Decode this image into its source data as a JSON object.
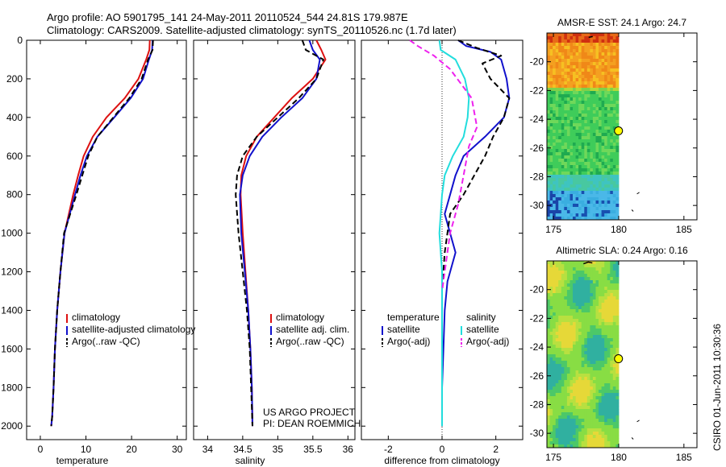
{
  "header": {
    "title_line1": "Argo profile: AO 5901795_141 24-May-2011 20110524_544 24.81S 179.987E",
    "title_line2": "Climatology: CARS2009. Satellite-adjusted climatology: synTS_20110526.nc (1.7d later)"
  },
  "colors": {
    "climatology": "#dd1111",
    "satellite": "#1111cc",
    "argo": "#000000",
    "sat_salinity": "#22dddd",
    "argo_salinity_adj": "#ee22ee"
  },
  "chart_data": [
    {
      "type": "line",
      "id": "temperature",
      "xlabel": "temperature",
      "ylabel": "",
      "xlim": [
        -3,
        32
      ],
      "ylim": [
        0,
        2070
      ],
      "y_reversed": true,
      "xticks": [
        0,
        10,
        20,
        30
      ],
      "yticks": [
        0,
        200,
        400,
        600,
        800,
        1000,
        1200,
        1400,
        1600,
        1800,
        2000
      ],
      "legend": {
        "position": "lower-right",
        "entries": [
          "climatology",
          "satellite-adjusted climatology",
          "Argo(..raw -QC)"
        ]
      },
      "series": [
        {
          "name": "climatology",
          "style": "solid",
          "color_key": "climatology",
          "x": [
            24.0,
            23.9,
            23.2,
            21.5,
            18.5,
            14.5,
            11.5,
            9.5,
            8.3,
            7.2,
            5.3,
            4.4,
            3.7,
            3.2,
            2.9,
            2.6,
            2.4
          ],
          "y": [
            0,
            50,
            100,
            200,
            300,
            400,
            500,
            600,
            700,
            800,
            1000,
            1200,
            1400,
            1600,
            1800,
            1950,
            2000
          ]
        },
        {
          "name": "satellite-adjusted climatology",
          "style": "solid",
          "color_key": "satellite",
          "x": [
            24.6,
            24.5,
            23.8,
            22.5,
            19.8,
            16.2,
            12.5,
            10.2,
            8.8,
            7.6,
            5.3,
            4.4,
            3.7,
            3.2,
            2.9,
            2.6,
            2.4
          ],
          "y": [
            0,
            50,
            100,
            200,
            300,
            400,
            500,
            600,
            700,
            800,
            1000,
            1200,
            1400,
            1600,
            1800,
            1950,
            2000
          ]
        },
        {
          "name": "Argo(..raw -QC)",
          "style": "dashed",
          "color_key": "argo",
          "x": [
            24.7,
            24.6,
            23.6,
            22.2,
            19.5,
            16.0,
            12.5,
            10.5,
            9.2,
            7.9,
            5.2,
            4.4,
            3.7,
            3.2,
            2.9,
            2.6,
            2.4
          ],
          "y": [
            0,
            50,
            100,
            200,
            300,
            400,
            500,
            600,
            700,
            800,
            1000,
            1200,
            1400,
            1600,
            1800,
            1950,
            2000
          ]
        }
      ]
    },
    {
      "type": "line",
      "id": "salinity",
      "xlabel": "salinity",
      "ylabel": "",
      "xlim": [
        33.8,
        36.1
      ],
      "ylim": [
        0,
        2070
      ],
      "y_reversed": true,
      "xticks": [
        34,
        34.5,
        35,
        35.5,
        36
      ],
      "yticks": [
        0,
        200,
        400,
        600,
        800,
        1000,
        1200,
        1400,
        1600,
        1800,
        2000
      ],
      "legend": {
        "position": "lower-right",
        "entries": [
          "climatology",
          "satellite adj. clim.",
          "Argo(..raw -QC)"
        ]
      },
      "annotations": [
        "US ARGO PROJECT",
        "PI: DEAN ROEMMICH"
      ],
      "series": [
        {
          "name": "climatology",
          "style": "solid",
          "color_key": "climatology",
          "x": [
            35.55,
            35.62,
            35.68,
            35.5,
            35.2,
            34.95,
            34.7,
            34.55,
            34.48,
            34.47,
            34.5,
            34.54,
            34.58,
            34.61,
            34.63,
            34.64
          ],
          "y": [
            0,
            50,
            100,
            200,
            300,
            400,
            500,
            600,
            700,
            800,
            1000,
            1200,
            1400,
            1600,
            1800,
            2000
          ]
        },
        {
          "name": "satellite adj. clim.",
          "style": "solid",
          "color_key": "satellite",
          "x": [
            35.45,
            35.5,
            35.6,
            35.55,
            35.35,
            35.05,
            34.78,
            34.6,
            34.5,
            34.46,
            34.48,
            34.53,
            34.58,
            34.61,
            34.63,
            34.64
          ],
          "y": [
            0,
            50,
            100,
            200,
            300,
            400,
            500,
            600,
            700,
            800,
            1000,
            1200,
            1400,
            1600,
            1800,
            2000
          ]
        },
        {
          "name": "Argo(..raw -QC)",
          "style": "dashed",
          "color_key": "argo",
          "x": [
            35.35,
            35.4,
            35.65,
            35.55,
            35.3,
            35.0,
            34.7,
            34.5,
            34.42,
            34.4,
            34.44,
            34.5,
            34.56,
            34.6,
            34.62,
            34.64
          ],
          "y": [
            0,
            50,
            100,
            200,
            300,
            400,
            500,
            600,
            700,
            800,
            1000,
            1200,
            1400,
            1600,
            1800,
            2000
          ]
        }
      ]
    },
    {
      "type": "line",
      "id": "difference",
      "xlabel": "difference from climatology",
      "ylabel": "",
      "xlim": [
        -3,
        3
      ],
      "ylim": [
        0,
        2070
      ],
      "y_reversed": true,
      "xticks": [
        -2,
        0,
        2
      ],
      "yticks": [
        0,
        200,
        400,
        600,
        800,
        1000,
        1200,
        1400,
        1600,
        1800,
        2000
      ],
      "legend": {
        "position": "lower-right",
        "groups": [
          {
            "title": "temperature",
            "entries": [
              "satellite",
              "Argo(-adj)"
            ]
          },
          {
            "title": "salinity",
            "entries": [
              "satellite",
              "Argo(-adj)"
            ]
          }
        ]
      },
      "series": [
        {
          "name": "satellite",
          "group": "temperature",
          "style": "solid",
          "color_key": "satellite",
          "x": [
            0.6,
            0.9,
            1.8,
            2.2,
            2.4,
            2.5,
            2.3,
            1.6,
            0.8,
            0.5,
            0.3,
            0.1,
            0.5,
            0.2,
            0.1,
            0.05,
            0.0,
            0.0
          ],
          "y": [
            0,
            30,
            60,
            100,
            200,
            300,
            400,
            500,
            600,
            700,
            800,
            900,
            1100,
            1250,
            1400,
            1600,
            1800,
            2000
          ]
        },
        {
          "name": "Argo(-adj)",
          "group": "temperature",
          "style": "dashed",
          "color_key": "argo",
          "x": [
            0.6,
            1.3,
            2.2,
            1.5,
            1.8,
            2.5,
            2.3,
            1.9,
            1.6,
            1.2,
            0.8,
            0.3,
            0.1,
            0.0,
            0.0,
            0.0
          ],
          "y": [
            0,
            40,
            80,
            120,
            200,
            300,
            400,
            500,
            600,
            700,
            800,
            900,
            1100,
            1300,
            1600,
            2000
          ]
        },
        {
          "name": "satellite",
          "group": "salinity",
          "style": "solid",
          "color_key": "sat_salinity",
          "x": [
            -0.1,
            -0.05,
            0.5,
            0.85,
            1.0,
            0.95,
            0.8,
            0.4,
            0.1,
            0.0,
            -0.1,
            0.0,
            0.0,
            0.0
          ],
          "y": [
            0,
            50,
            100,
            200,
            300,
            400,
            500,
            600,
            700,
            800,
            1000,
            1200,
            1600,
            2000
          ]
        },
        {
          "name": "Argo(-adj)",
          "group": "salinity",
          "style": "dashed",
          "color_key": "argo_salinity_adj",
          "x": [
            -1.2,
            -0.9,
            -0.3,
            0.3,
            1.1,
            1.3,
            1.0,
            0.8,
            0.6,
            0.3,
            0.1,
            0.0
          ],
          "y": [
            0,
            30,
            80,
            150,
            300,
            450,
            550,
            700,
            850,
            1000,
            1200,
            1300
          ]
        }
      ]
    },
    {
      "type": "heatmap",
      "id": "sst_map",
      "title": "AMSR-E SST: 24.1 Argo: 24.7",
      "xlim": [
        174.5,
        186
      ],
      "ylim": [
        -31,
        -18
      ],
      "xticks": [
        175,
        180,
        185
      ],
      "yticks": [
        -20,
        -22,
        -24,
        -26,
        -28,
        -30
      ],
      "land_coast_trace": true,
      "argo_marker": {
        "lon": 179.987,
        "lat": -24.81
      },
      "zones": [
        {
          "from_lat": -18,
          "to_lat": -22.5,
          "color": "#f4a020"
        },
        {
          "from_lat": -22.5,
          "to_lat": -28,
          "color": "#3fcc5a"
        },
        {
          "from_lat": -28,
          "to_lat": -31,
          "color": "#3aaee0"
        }
      ]
    },
    {
      "type": "heatmap",
      "id": "sla_map",
      "title": "Altimetric SLA: 0.24 Argo: 0.16",
      "xlim": [
        174.5,
        186
      ],
      "ylim": [
        -31,
        -18
      ],
      "xticks": [
        175,
        180,
        185
      ],
      "yticks": [
        -20,
        -22,
        -24,
        -26,
        -28,
        -30
      ],
      "argo_marker": {
        "lon": 179.987,
        "lat": -24.81
      },
      "dominant_color": "#88dd44"
    }
  ],
  "footer": {
    "stamp": "CSIRO 01-Jun-2011 10:30:36"
  }
}
